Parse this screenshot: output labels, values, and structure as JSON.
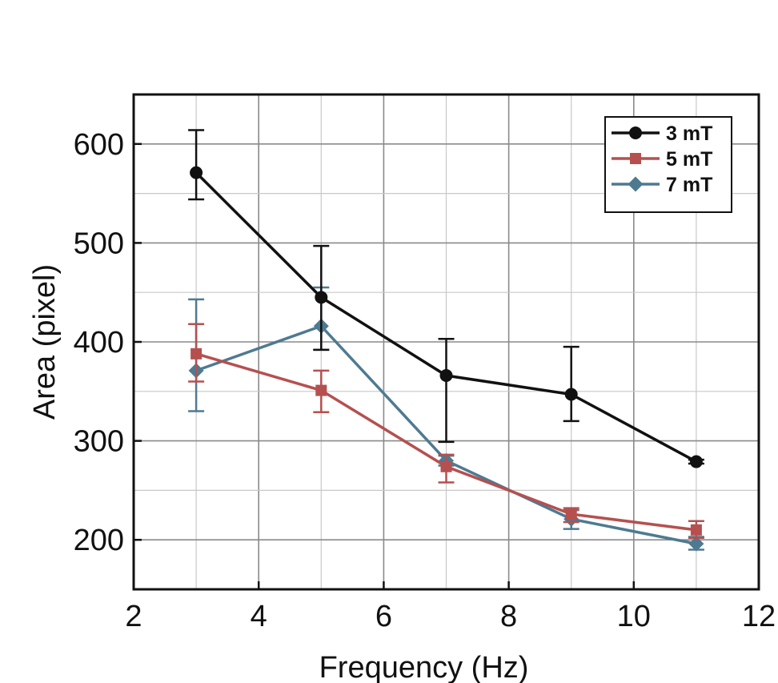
{
  "chart_data": {
    "type": "line",
    "title": "",
    "xlabel": "Frequency (Hz)",
    "ylabel": "Area (pixel)",
    "xlim": [
      2,
      12
    ],
    "ylim": [
      150,
      650
    ],
    "xticks": [
      2,
      4,
      6,
      8,
      10,
      12
    ],
    "xtick_labels": [
      "2",
      "4",
      "6",
      "8",
      "10",
      "12"
    ],
    "yticks": [
      200,
      300,
      400,
      500,
      600
    ],
    "ytick_labels": [
      "200",
      "300",
      "400",
      "500",
      "600"
    ],
    "grid": true,
    "legend_position": "top-right",
    "x": [
      3,
      5,
      7,
      9,
      11
    ],
    "series": [
      {
        "name": "3 mT",
        "color": "#111111",
        "marker": "circle",
        "values": [
          571,
          445,
          366,
          347,
          279
        ],
        "err_low": [
          544,
          392,
          299,
          320,
          277
        ],
        "err_high": [
          614,
          497,
          403,
          395,
          281
        ]
      },
      {
        "name": "5 mT",
        "color": "#b5504f",
        "marker": "square",
        "values": [
          388,
          351,
          274,
          226,
          210
        ],
        "err_low": [
          360,
          329,
          258,
          218,
          202
        ],
        "err_high": [
          418,
          371,
          286,
          232,
          219
        ]
      },
      {
        "name": "7 mT",
        "color": "#4e7a91",
        "marker": "diamond",
        "values": [
          371,
          416,
          280,
          221,
          196
        ],
        "err_low": [
          330,
          392,
          275,
          211,
          190
        ],
        "err_high": [
          443,
          455,
          285,
          230,
          203
        ]
      }
    ]
  }
}
